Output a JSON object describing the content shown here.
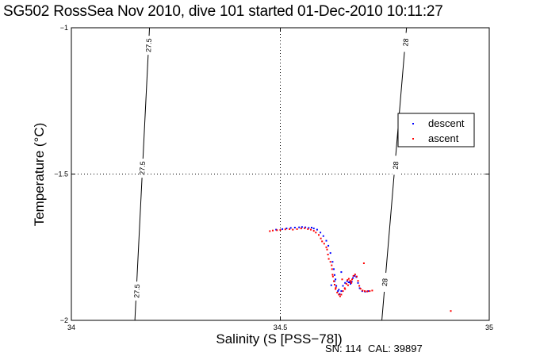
{
  "chart_data": {
    "type": "scatter",
    "title": "SG502 RossSea Nov 2010, dive 101 started 01-Dec-2010 10:11:27",
    "xlabel": "Salinity (S [PSS−78])",
    "ylabel": "Temperature (°C)",
    "xlim": [
      34,
      35
    ],
    "ylim": [
      -2,
      -1
    ],
    "x_ticks": [
      34,
      34.5,
      35
    ],
    "x_tick_labels": [
      "34",
      "34.5",
      "35"
    ],
    "y_ticks": [
      -2,
      -1.5,
      -1
    ],
    "y_tick_labels": [
      "−2",
      "−1.5",
      "−1"
    ],
    "grid": true,
    "legend_position": "top-right",
    "contours": [
      {
        "label": "27.5",
        "points": [
          [
            34.152,
            -2.0
          ],
          [
            34.187,
            -1.0
          ]
        ],
        "label_positions": [
          [
            34.185,
            -1.06
          ],
          [
            34.17,
            -1.48
          ],
          [
            34.157,
            -1.9
          ]
        ]
      },
      {
        "label": "28",
        "points": [
          [
            34.743,
            -2.0
          ],
          [
            34.802,
            -1.0
          ]
        ],
        "label_positions": [
          [
            34.8,
            -1.05
          ],
          [
            34.776,
            -1.47
          ],
          [
            34.75,
            -1.87
          ]
        ]
      }
    ],
    "series": [
      {
        "name": "descent",
        "color": "#0000ff",
        "points": [
          [
            34.49,
            -1.69
          ],
          [
            34.505,
            -1.688
          ],
          [
            34.515,
            -1.686
          ],
          [
            34.525,
            -1.684
          ],
          [
            34.535,
            -1.683
          ],
          [
            34.545,
            -1.682
          ],
          [
            34.552,
            -1.681
          ],
          [
            34.56,
            -1.682
          ],
          [
            34.568,
            -1.684
          ],
          [
            34.575,
            -1.683
          ],
          [
            34.58,
            -1.686
          ],
          [
            34.588,
            -1.69
          ],
          [
            34.596,
            -1.7
          ],
          [
            34.603,
            -1.712
          ],
          [
            34.61,
            -1.728
          ],
          [
            34.615,
            -1.745
          ],
          [
            34.62,
            -1.77
          ],
          [
            34.625,
            -1.8
          ],
          [
            34.628,
            -1.825
          ],
          [
            34.63,
            -1.845
          ],
          [
            34.632,
            -1.86
          ],
          [
            34.634,
            -1.882
          ],
          [
            34.638,
            -1.9
          ],
          [
            34.642,
            -1.91
          ],
          [
            34.646,
            -1.9
          ],
          [
            34.65,
            -1.882
          ],
          [
            34.655,
            -1.872
          ],
          [
            34.66,
            -1.866
          ],
          [
            34.664,
            -1.87
          ],
          [
            34.668,
            -1.875
          ],
          [
            34.671,
            -1.868
          ],
          [
            34.674,
            -1.855
          ],
          [
            34.678,
            -1.848
          ],
          [
            34.682,
            -1.852
          ],
          [
            34.686,
            -1.872
          ],
          [
            34.69,
            -1.89
          ],
          [
            34.696,
            -1.9
          ],
          [
            34.703,
            -1.902
          ],
          [
            34.71,
            -1.9
          ],
          [
            34.646,
            -1.835
          ],
          [
            34.63,
            -1.866
          ],
          [
            34.622,
            -1.88
          ],
          [
            34.666,
            -1.87
          ],
          [
            34.64,
            -1.895
          ]
        ]
      },
      {
        "name": "ascent",
        "color": "#ff0000",
        "points": [
          [
            34.475,
            -1.695
          ],
          [
            34.482,
            -1.693
          ],
          [
            34.492,
            -1.692
          ],
          [
            34.5,
            -1.691
          ],
          [
            34.512,
            -1.689
          ],
          [
            34.522,
            -1.688
          ],
          [
            34.53,
            -1.69
          ],
          [
            34.54,
            -1.688
          ],
          [
            34.55,
            -1.686
          ],
          [
            34.558,
            -1.685
          ],
          [
            34.566,
            -1.688
          ],
          [
            34.573,
            -1.69
          ],
          [
            34.58,
            -1.694
          ],
          [
            34.585,
            -1.7
          ],
          [
            34.592,
            -1.708
          ],
          [
            34.597,
            -1.72
          ],
          [
            34.6,
            -1.73
          ],
          [
            34.605,
            -1.738
          ],
          [
            34.61,
            -1.75
          ],
          [
            34.612,
            -1.758
          ],
          [
            34.614,
            -1.775
          ],
          [
            34.616,
            -1.79
          ],
          [
            34.62,
            -1.8
          ],
          [
            34.623,
            -1.812
          ],
          [
            34.624,
            -1.825
          ],
          [
            34.626,
            -1.85
          ],
          [
            34.628,
            -1.866
          ],
          [
            34.63,
            -1.878
          ],
          [
            34.632,
            -1.893
          ],
          [
            34.636,
            -1.905
          ],
          [
            34.64,
            -1.912
          ],
          [
            34.643,
            -1.918
          ],
          [
            34.646,
            -1.912
          ],
          [
            34.65,
            -1.9
          ],
          [
            34.654,
            -1.89
          ],
          [
            34.658,
            -1.875
          ],
          [
            34.661,
            -1.862
          ],
          [
            34.664,
            -1.858
          ],
          [
            34.667,
            -1.865
          ],
          [
            34.67,
            -1.872
          ],
          [
            34.672,
            -1.86
          ],
          [
            34.675,
            -1.848
          ],
          [
            34.679,
            -1.843
          ],
          [
            34.683,
            -1.85
          ],
          [
            34.686,
            -1.865
          ],
          [
            34.689,
            -1.882
          ],
          [
            34.692,
            -1.892
          ],
          [
            34.697,
            -1.898
          ],
          [
            34.702,
            -1.9
          ],
          [
            34.708,
            -1.901
          ],
          [
            34.714,
            -1.9
          ],
          [
            34.72,
            -1.898
          ],
          [
            34.7,
            -1.805
          ],
          [
            34.908,
            -1.968
          ],
          [
            34.648,
            -1.86
          ],
          [
            34.633,
            -1.888
          ],
          [
            34.655,
            -1.893
          ],
          [
            34.662,
            -1.88
          ],
          [
            34.669,
            -1.866
          ],
          [
            34.625,
            -1.844
          ]
        ]
      }
    ]
  },
  "footer": {
    "sn": "SN: 114",
    "cal": "CAL: 39897"
  }
}
